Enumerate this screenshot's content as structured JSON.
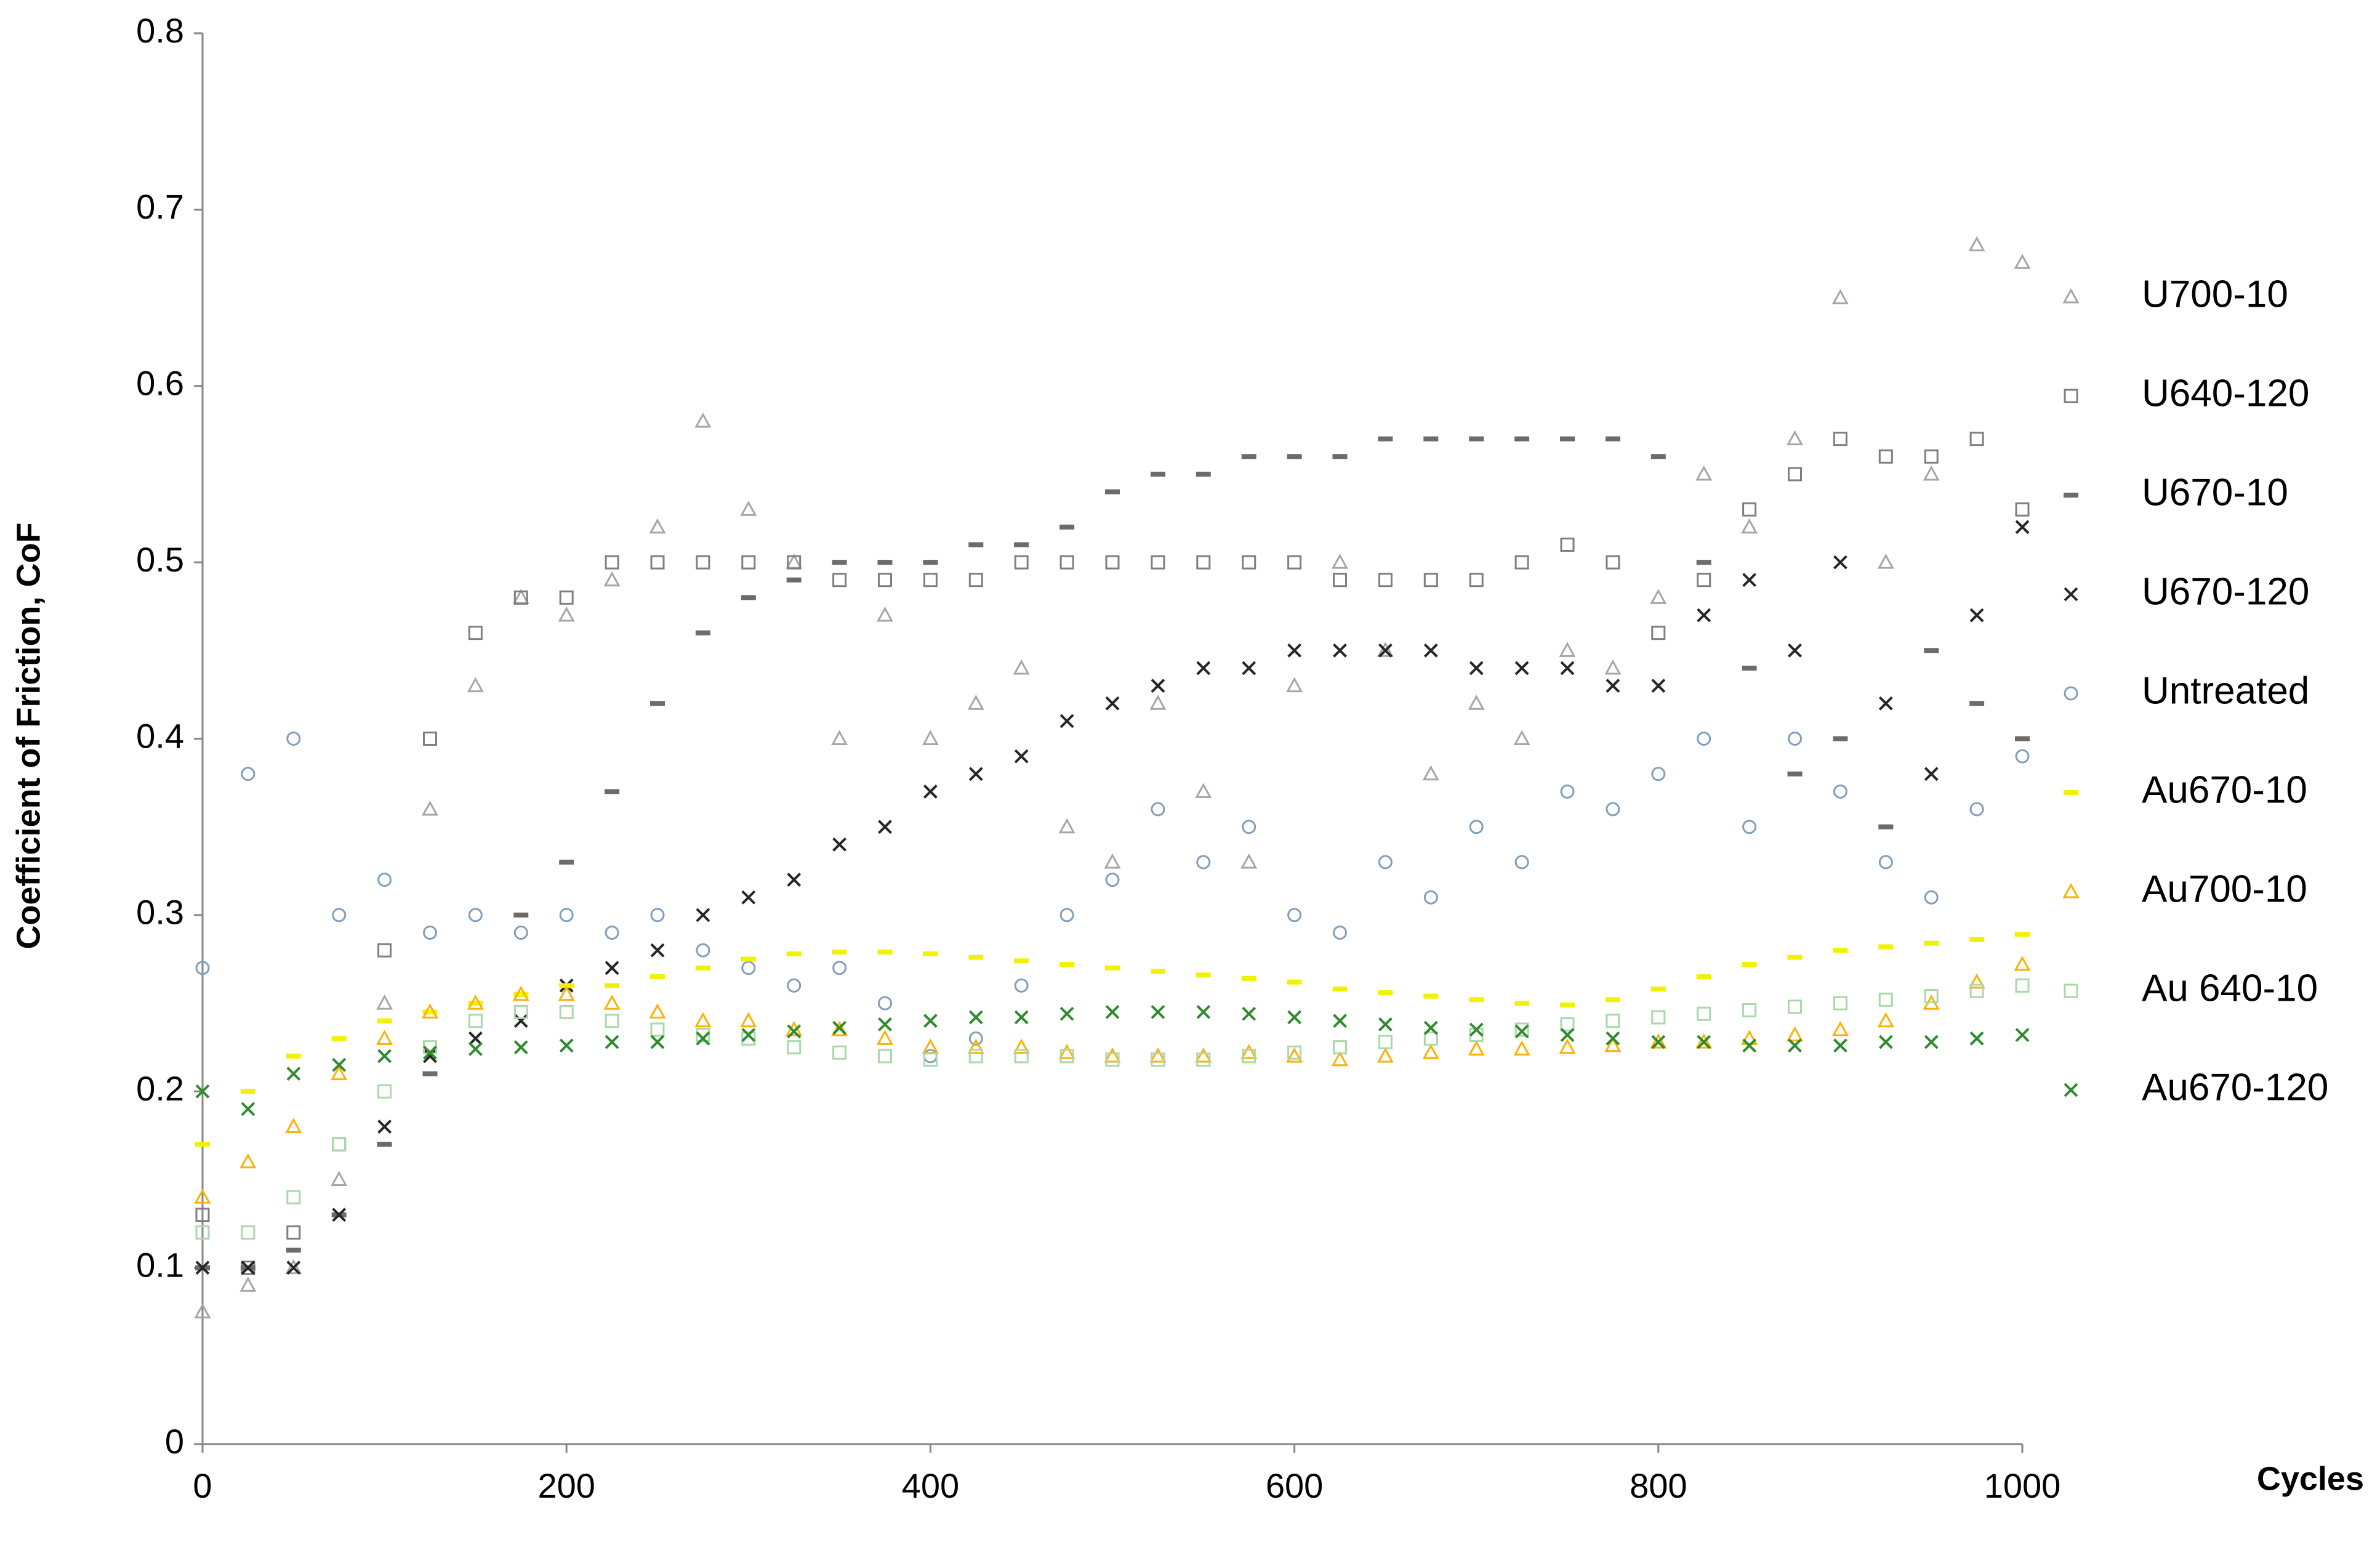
{
  "chart_data": {
    "type": "scatter",
    "x_label": "Cycles",
    "y_label": "Coefficient of Friction, CoF",
    "x": [
      0,
      25,
      50,
      75,
      100,
      125,
      150,
      175,
      200,
      225,
      250,
      275,
      300,
      325,
      350,
      375,
      400,
      425,
      450,
      475,
      500,
      525,
      550,
      575,
      600,
      625,
      650,
      675,
      700,
      725,
      750,
      775,
      800,
      825,
      850,
      875,
      900,
      925,
      950,
      975,
      1000
    ],
    "xlim": [
      0,
      1000
    ],
    "xticks": [
      0,
      200,
      400,
      600,
      800,
      1000
    ],
    "ylim": [
      0,
      0.8
    ],
    "yticks": [
      0,
      0.1,
      0.2,
      0.3,
      0.4,
      0.5,
      0.6,
      0.7,
      0.8
    ],
    "grid": false,
    "legend": "right",
    "series": [
      {
        "name": "U700-10",
        "color": "#a6a6a6",
        "marker": "triangle",
        "values": [
          0.075,
          0.09,
          0.1,
          0.15,
          0.25,
          0.36,
          0.43,
          0.48,
          0.47,
          0.49,
          0.52,
          0.58,
          0.53,
          0.5,
          0.4,
          0.47,
          0.4,
          0.42,
          0.44,
          0.35,
          0.33,
          0.42,
          0.37,
          0.33,
          0.43,
          0.5,
          0.45,
          0.38,
          0.42,
          0.4,
          0.45,
          0.44,
          0.48,
          0.55,
          0.52,
          0.57,
          0.65,
          0.5,
          0.55,
          0.68,
          0.67
        ]
      },
      {
        "name": "U640-120",
        "color": "#7f7f7f",
        "marker": "square",
        "values": [
          0.13,
          0.1,
          0.12,
          0.17,
          0.28,
          0.4,
          0.46,
          0.48,
          0.48,
          0.5,
          0.5,
          0.5,
          0.5,
          0.5,
          0.49,
          0.49,
          0.49,
          0.49,
          0.5,
          0.5,
          0.5,
          0.5,
          0.5,
          0.5,
          0.5,
          0.49,
          0.49,
          0.49,
          0.49,
          0.5,
          0.51,
          0.5,
          0.46,
          0.49,
          0.53,
          0.55,
          0.57,
          0.56,
          0.56,
          0.57,
          0.53
        ]
      },
      {
        "name": "U670-10",
        "color": "#6f6a6a",
        "marker": "dash",
        "values": [
          0.1,
          0.1,
          0.11,
          0.13,
          0.17,
          0.21,
          0.25,
          0.3,
          0.33,
          0.37,
          0.42,
          0.46,
          0.48,
          0.49,
          0.5,
          0.5,
          0.5,
          0.51,
          0.51,
          0.52,
          0.54,
          0.55,
          0.55,
          0.56,
          0.56,
          0.56,
          0.57,
          0.57,
          0.57,
          0.57,
          0.57,
          0.57,
          0.56,
          0.5,
          0.44,
          0.38,
          0.4,
          0.35,
          0.45,
          0.42,
          0.4
        ]
      },
      {
        "name": "U670-120",
        "color": "#262626",
        "marker": "cross",
        "values": [
          0.1,
          0.1,
          0.1,
          0.13,
          0.18,
          0.22,
          0.23,
          0.24,
          0.26,
          0.27,
          0.28,
          0.3,
          0.31,
          0.32,
          0.34,
          0.35,
          0.37,
          0.38,
          0.39,
          0.41,
          0.42,
          0.43,
          0.44,
          0.44,
          0.45,
          0.45,
          0.45,
          0.45,
          0.44,
          0.44,
          0.44,
          0.43,
          0.43,
          0.47,
          0.49,
          0.45,
          0.5,
          0.42,
          0.38,
          0.47,
          0.52
        ]
      },
      {
        "name": "Untreated",
        "color": "#7f9fbf",
        "marker": "circle",
        "values": [
          0.27,
          0.38,
          0.4,
          0.3,
          0.32,
          0.29,
          0.3,
          0.29,
          0.3,
          0.29,
          0.3,
          0.28,
          0.27,
          0.26,
          0.27,
          0.25,
          0.22,
          0.23,
          0.26,
          0.3,
          0.32,
          0.36,
          0.33,
          0.35,
          0.3,
          0.29,
          0.33,
          0.31,
          0.35,
          0.33,
          0.37,
          0.36,
          0.38,
          0.4,
          0.35,
          0.4,
          0.37,
          0.33,
          0.31,
          0.36,
          0.39
        ]
      },
      {
        "name": "Au670-10",
        "color": "#f2f200",
        "marker": "dash",
        "values": [
          0.17,
          0.2,
          0.22,
          0.23,
          0.24,
          0.245,
          0.25,
          0.255,
          0.26,
          0.26,
          0.265,
          0.27,
          0.275,
          0.278,
          0.279,
          0.279,
          0.278,
          0.276,
          0.274,
          0.272,
          0.27,
          0.268,
          0.266,
          0.264,
          0.262,
          0.258,
          0.256,
          0.254,
          0.252,
          0.25,
          0.249,
          0.252,
          0.258,
          0.265,
          0.272,
          0.276,
          0.28,
          0.282,
          0.284,
          0.286,
          0.289
        ]
      },
      {
        "name": "Au700-10",
        "color": "#ffb000",
        "marker": "triangle",
        "values": [
          0.14,
          0.16,
          0.18,
          0.21,
          0.23,
          0.245,
          0.25,
          0.255,
          0.255,
          0.25,
          0.245,
          0.24,
          0.24,
          0.235,
          0.235,
          0.23,
          0.225,
          0.225,
          0.225,
          0.222,
          0.22,
          0.22,
          0.22,
          0.222,
          0.22,
          0.218,
          0.22,
          0.222,
          0.224,
          0.224,
          0.225,
          0.226,
          0.228,
          0.228,
          0.23,
          0.232,
          0.235,
          0.24,
          0.25,
          0.262,
          0.272
        ]
      },
      {
        "name": "Au 640-10",
        "color": "#a9d8a9",
        "marker": "square",
        "values": [
          0.12,
          0.12,
          0.14,
          0.17,
          0.2,
          0.225,
          0.24,
          0.245,
          0.245,
          0.24,
          0.235,
          0.232,
          0.23,
          0.225,
          0.222,
          0.22,
          0.218,
          0.22,
          0.22,
          0.22,
          0.218,
          0.218,
          0.218,
          0.22,
          0.222,
          0.225,
          0.228,
          0.23,
          0.232,
          0.235,
          0.238,
          0.24,
          0.242,
          0.244,
          0.246,
          0.248,
          0.25,
          0.252,
          0.254,
          0.257,
          0.26
        ]
      },
      {
        "name": "Au670-120",
        "color": "#2e8b2e",
        "marker": "cross",
        "values": [
          0.2,
          0.19,
          0.21,
          0.215,
          0.22,
          0.222,
          0.224,
          0.225,
          0.226,
          0.228,
          0.228,
          0.23,
          0.232,
          0.234,
          0.236,
          0.238,
          0.24,
          0.242,
          0.242,
          0.244,
          0.245,
          0.245,
          0.245,
          0.244,
          0.242,
          0.24,
          0.238,
          0.236,
          0.235,
          0.234,
          0.232,
          0.23,
          0.228,
          0.228,
          0.226,
          0.226,
          0.226,
          0.228,
          0.228,
          0.23,
          0.232
        ]
      }
    ]
  }
}
